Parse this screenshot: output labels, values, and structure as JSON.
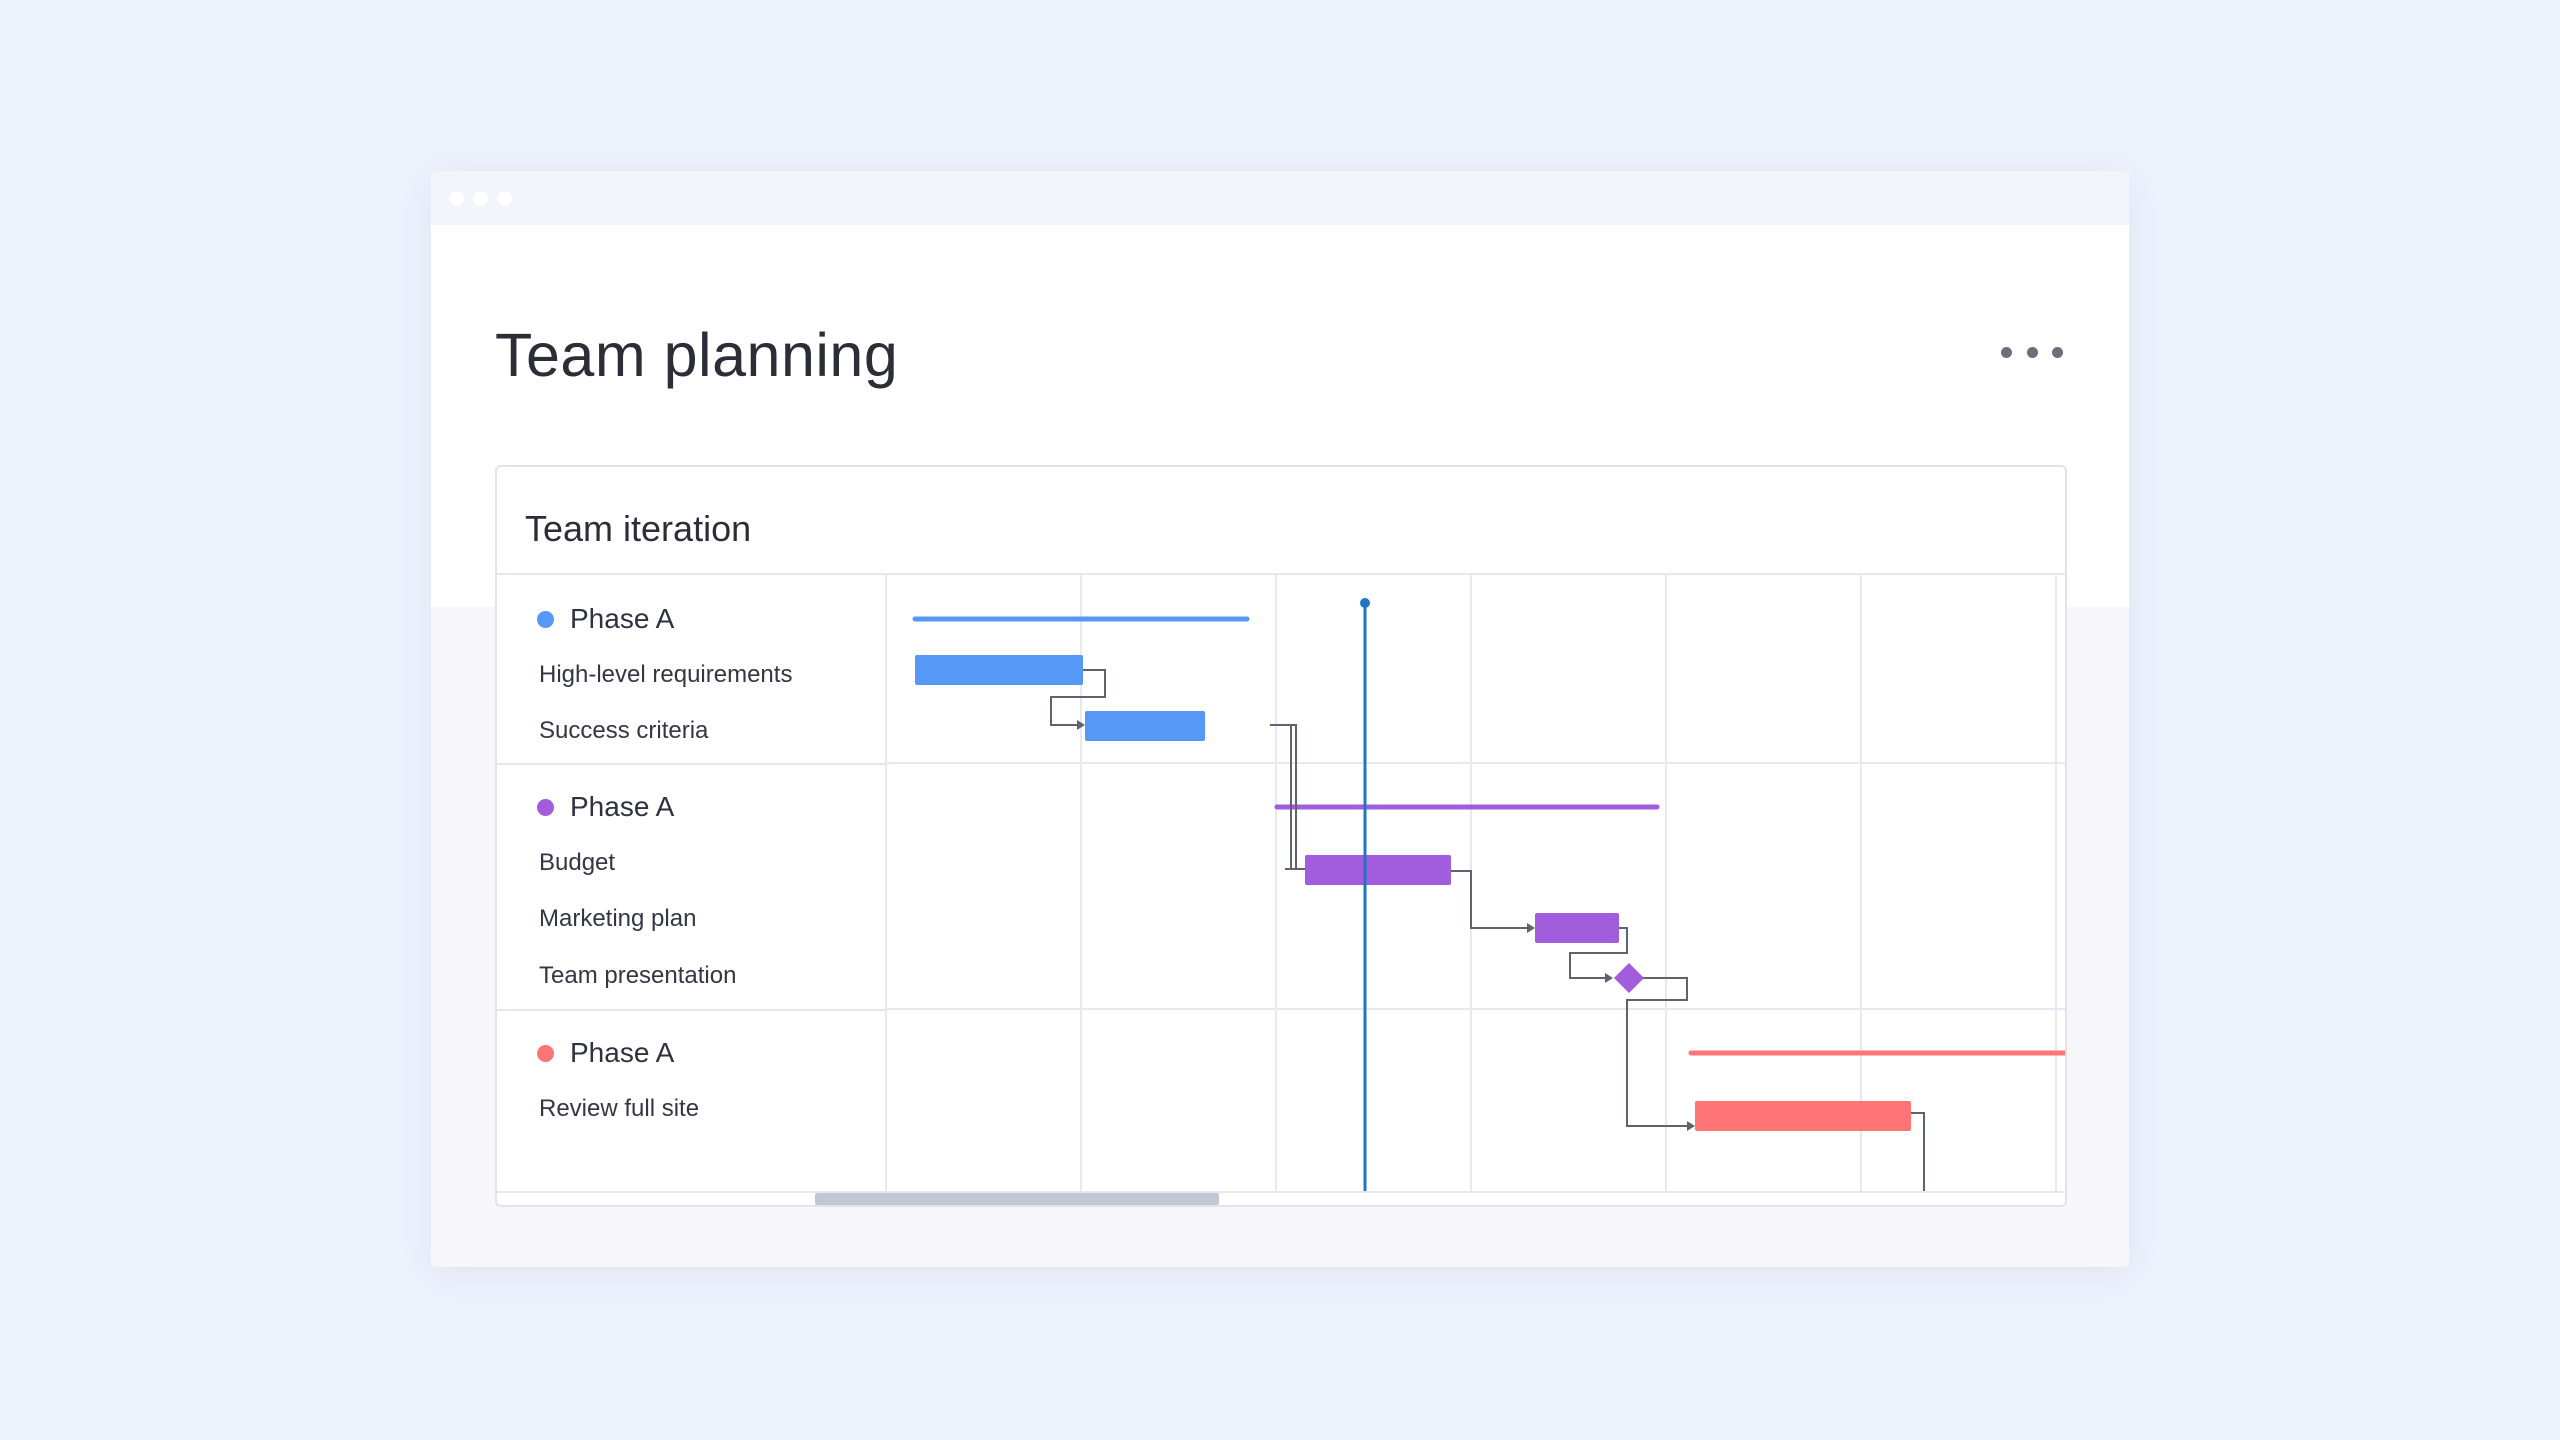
{
  "window": {
    "page_title": "Team planning"
  },
  "header": {
    "more_icon": "more-horizontal-icon"
  },
  "card": {
    "title": "Team iteration"
  },
  "colors": {
    "blue": "#5598f5",
    "purple": "#a25ddc",
    "red": "#ff7575",
    "today_line": "#1f76c2",
    "connector": "#5f6370"
  },
  "groups": [
    {
      "phase": "Phase A",
      "color": "#5598f5",
      "tasks": [
        "High-level requirements",
        "Success criteria"
      ]
    },
    {
      "phase": "Phase A",
      "color": "#a25ddc",
      "tasks": [
        "Budget",
        "Marketing plan",
        "Team presentation"
      ]
    },
    {
      "phase": "Phase A",
      "color": "#ff7575",
      "tasks": [
        "Review full site"
      ]
    }
  ]
}
